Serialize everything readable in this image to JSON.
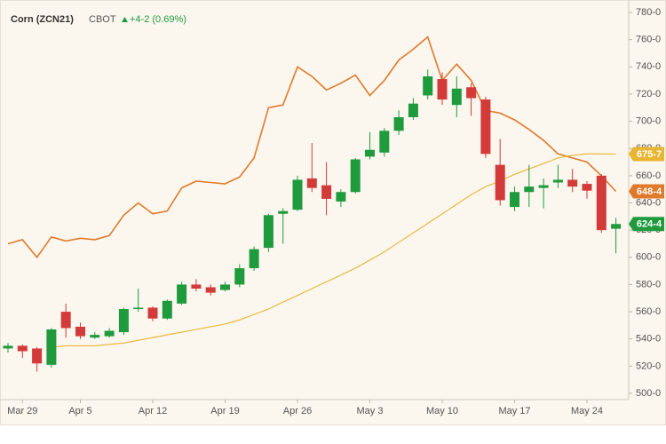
{
  "chart_data": {
    "type": "candlestick",
    "title": "Corn (ZCN21)",
    "subtitle": "CBOT",
    "annotation": "+4-2 (0.69%)",
    "categories": [
      null,
      "Mar 29",
      null,
      null,
      null,
      "Apr 5",
      null,
      null,
      null,
      null,
      "Apr 12",
      null,
      null,
      null,
      null,
      "Apr 19",
      null,
      null,
      null,
      null,
      "Apr 26",
      null,
      null,
      null,
      null,
      "May 3",
      null,
      null,
      null,
      null,
      "May 10",
      null,
      null,
      null,
      null,
      "May 17",
      null,
      null,
      null,
      null,
      "May 24",
      null,
      null
    ],
    "up_color": "#1f9b3e",
    "down_color": "#d33a3a",
    "open": [
      533,
      535,
      533,
      521,
      560,
      549,
      541,
      542,
      545,
      562,
      563,
      555,
      566,
      580,
      578,
      576,
      580,
      592,
      607,
      632,
      635,
      658,
      653,
      641,
      648,
      674,
      677,
      693,
      703,
      719,
      731,
      712,
      725,
      716,
      668,
      637,
      648,
      651,
      655,
      657,
      654,
      660,
      621
    ],
    "high": [
      537,
      536,
      534,
      548,
      566,
      552,
      545,
      548,
      563,
      577,
      564,
      569,
      582,
      584,
      580,
      582,
      595,
      608,
      632,
      636,
      660,
      684,
      670,
      650,
      673,
      692,
      695,
      708,
      717,
      738,
      736,
      733,
      728,
      718,
      687,
      652,
      668,
      658,
      668,
      665,
      656,
      661,
      629
    ],
    "low": [
      530,
      526,
      516,
      519,
      541,
      540,
      540,
      541,
      543,
      560,
      553,
      554,
      565,
      575,
      572,
      575,
      578,
      590,
      604,
      610,
      634,
      648,
      631,
      637,
      647,
      672,
      674,
      690,
      701,
      716,
      712,
      703,
      704,
      673,
      638,
      634,
      637,
      636,
      651,
      648,
      643,
      618,
      603
    ],
    "close": [
      535,
      531,
      522,
      547,
      548,
      542,
      543,
      546,
      562,
      563,
      555,
      568,
      580,
      577,
      574,
      580,
      592,
      606,
      631,
      634,
      657,
      651,
      643,
      648,
      672,
      679,
      693,
      703,
      713,
      733,
      716,
      724,
      717,
      676,
      642,
      648,
      652,
      653,
      657,
      652,
      649,
      620,
      624.5
    ],
    "close_labels": [
      null,
      null,
      null,
      null,
      null,
      null,
      null,
      null,
      null,
      null,
      null,
      null,
      null,
      null,
      null,
      null,
      null,
      null,
      null,
      null,
      null,
      null,
      null,
      null,
      null,
      null,
      null,
      null,
      null,
      null,
      null,
      null,
      null,
      null,
      null,
      null,
      null,
      null,
      null,
      null,
      null,
      null,
      "624-4"
    ],
    "series": [
      {
        "color": "#e07a2a",
        "values": [
          610,
          613,
          600,
          615,
          612,
          614,
          613,
          616,
          631,
          640,
          632,
          634,
          651,
          656,
          655,
          654,
          659,
          673,
          710,
          712,
          740,
          733,
          723,
          728,
          734,
          719,
          730,
          745,
          753,
          762,
          730,
          742,
          730,
          708,
          706,
          701,
          694,
          686,
          676,
          673,
          670,
          660,
          648.5
        ],
        "value_labels": [
          null,
          null,
          null,
          null,
          null,
          null,
          null,
          null,
          null,
          null,
          null,
          null,
          null,
          null,
          null,
          null,
          null,
          null,
          null,
          null,
          null,
          null,
          null,
          null,
          null,
          null,
          null,
          null,
          null,
          null,
          null,
          null,
          null,
          null,
          null,
          null,
          null,
          null,
          null,
          null,
          null,
          null,
          "648-4"
        ]
      },
      {
        "color": "#e8b530",
        "values": [
          null,
          null,
          null,
          534,
          535,
          535,
          535,
          536,
          537,
          539,
          541,
          543,
          545,
          547,
          549,
          551,
          554,
          558,
          562,
          567,
          572,
          577,
          582,
          587,
          592,
          598,
          604,
          611,
          618,
          625,
          632,
          639,
          646,
          652,
          656,
          661,
          665,
          669,
          673,
          675,
          676,
          676,
          675.875
        ],
        "value_labels": [
          null,
          null,
          null,
          null,
          null,
          null,
          null,
          null,
          null,
          null,
          null,
          null,
          null,
          null,
          null,
          null,
          null,
          null,
          null,
          null,
          null,
          null,
          null,
          null,
          null,
          null,
          null,
          null,
          null,
          null,
          null,
          null,
          null,
          null,
          null,
          null,
          null,
          null,
          null,
          null,
          null,
          null,
          "675-7"
        ]
      }
    ],
    "ylim": [
      500,
      780
    ],
    "yticks": [
      {
        "value": 500,
        "label": "500-0"
      },
      {
        "value": 520,
        "label": "520-0"
      },
      {
        "value": 540,
        "label": "540-0"
      },
      {
        "value": 560,
        "label": "560-0"
      },
      {
        "value": 580,
        "label": "580-0"
      },
      {
        "value": 600,
        "label": "600-0"
      },
      {
        "value": 620,
        "label": "620-0"
      },
      {
        "value": 640,
        "label": "640-0"
      },
      {
        "value": 660,
        "label": "660-0"
      },
      {
        "value": 680,
        "label": "680-0"
      },
      {
        "value": 700,
        "label": "700-0"
      },
      {
        "value": 720,
        "label": "720-0"
      },
      {
        "value": 740,
        "label": "740-0"
      },
      {
        "value": 760,
        "label": "760-0"
      },
      {
        "value": 780,
        "label": "780-0"
      }
    ],
    "grid": false
  }
}
